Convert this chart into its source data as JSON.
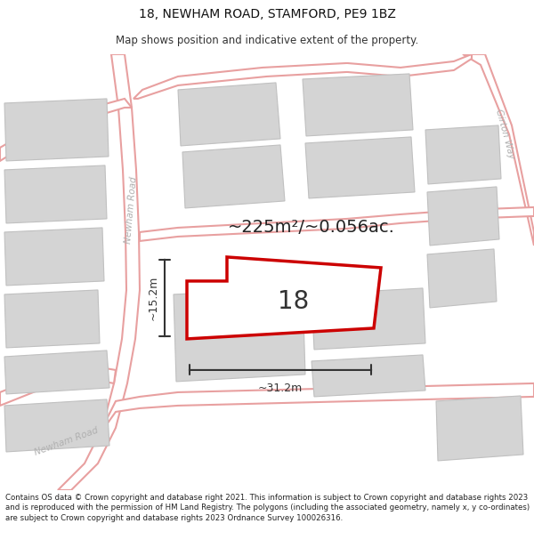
{
  "title": "18, NEWHAM ROAD, STAMFORD, PE9 1BZ",
  "subtitle": "Map shows position and indicative extent of the property.",
  "footer": "Contains OS data © Crown copyright and database right 2021. This information is subject to Crown copyright and database rights 2023 and is reproduced with the permission of HM Land Registry. The polygons (including the associated geometry, namely x, y co-ordinates) are subject to Crown copyright and database rights 2023 Ordnance Survey 100026316.",
  "area_label": "~225m²/~0.056ac.",
  "width_label": "~31.2m",
  "height_label": "~15.2m",
  "number_label": "18",
  "map_bg": "#f0f0f0",
  "road_stroke": "#e8a0a0",
  "road_fill": "#ffffff",
  "building_fill": "#d4d4d4",
  "building_stroke": "#c0c0c0",
  "highlight_stroke": "#cc0000",
  "highlight_fill": "#ffffff",
  "road_label_color": "#b0b0b0",
  "dim_color": "#333333",
  "title_fontsize": 10,
  "subtitle_fontsize": 8.5,
  "footer_fontsize": 6.2,
  "area_fontsize": 14,
  "number_fontsize": 20,
  "road_label_fontsize": 7.5,
  "dim_fontsize": 9
}
